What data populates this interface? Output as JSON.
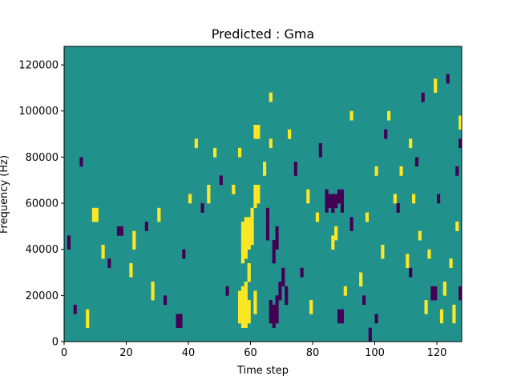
{
  "chart_data": {
    "type": "heatmap",
    "title": "Predicted : Gma",
    "xlabel": "Time step",
    "ylabel": "Frequency (Hz)",
    "xlim": [
      0,
      128
    ],
    "ylim": [
      0,
      128000
    ],
    "x_ticks": [
      0,
      20,
      40,
      60,
      80,
      100,
      120
    ],
    "y_ticks": [
      0,
      20000,
      40000,
      60000,
      80000,
      100000,
      120000
    ],
    "y_tick_labels": [
      "0",
      "20000",
      "40000",
      "60000",
      "80000",
      "100000",
      "120000"
    ],
    "colormap": "viridis",
    "colors": {
      "low": "#440154",
      "mid": "#21918c",
      "high": "#fde725",
      "frame": "#000000"
    },
    "background_value": 0,
    "value_legend": {
      "low": -1,
      "mid": 0,
      "high": 1
    },
    "grid": false,
    "time_bins": 128,
    "freq_bins": 64,
    "freq_bin_hz": 2000,
    "cells": [
      {
        "t": 56,
        "f": [
          4,
          5,
          6,
          7,
          8,
          9,
          10
        ],
        "v": 1
      },
      {
        "t": 57,
        "f": [
          3,
          4,
          5,
          6,
          7,
          8,
          9,
          10,
          11
        ],
        "v": 1
      },
      {
        "t": 58,
        "f": [
          3,
          4,
          5,
          6,
          7,
          8,
          9,
          10,
          11,
          12
        ],
        "v": 1
      },
      {
        "t": 59,
        "f": [
          4,
          5,
          6,
          7,
          8
        ],
        "v": 1
      },
      {
        "t": 57,
        "f": [
          17,
          18,
          19,
          20,
          21,
          22,
          23,
          24,
          25
        ],
        "v": 1
      },
      {
        "t": 58,
        "f": [
          18,
          19,
          20,
          21,
          22,
          23,
          24,
          25,
          26
        ],
        "v": 1
      },
      {
        "t": 59,
        "f": [
          20,
          21,
          22,
          23,
          24,
          25,
          26
        ],
        "v": 1
      },
      {
        "t": 60,
        "f": [
          21,
          22,
          23,
          24,
          25,
          26,
          27,
          28
        ],
        "v": 1
      },
      {
        "t": 61,
        "f": [
          29,
          30,
          31,
          32,
          33
        ],
        "v": 1
      },
      {
        "t": 62,
        "f": [
          30,
          31,
          32,
          33
        ],
        "v": 1
      },
      {
        "t": 59,
        "f": [
          13,
          14,
          15,
          16
        ],
        "v": 1
      },
      {
        "t": 61,
        "f": [
          6,
          7,
          8,
          9,
          10
        ],
        "v": 1
      },
      {
        "t": 66,
        "f": [
          4,
          5,
          6,
          7,
          8
        ],
        "v": -1
      },
      {
        "t": 67,
        "f": [
          3,
          4,
          5,
          6,
          7
        ],
        "v": -1
      },
      {
        "t": 68,
        "f": [
          4,
          5,
          6,
          7,
          8,
          9
        ],
        "v": -1
      },
      {
        "t": 69,
        "f": [
          9,
          10,
          11,
          12
        ],
        "v": -1
      },
      {
        "t": 71,
        "f": [
          8,
          9,
          10,
          11
        ],
        "v": -1
      },
      {
        "t": 65,
        "f": [
          22,
          23,
          24,
          25,
          26,
          27,
          28
        ],
        "v": -1
      },
      {
        "t": 67,
        "f": [
          17,
          18,
          19,
          20,
          21
        ],
        "v": -1
      },
      {
        "t": 68,
        "f": [
          20,
          21,
          22,
          23,
          24
        ],
        "v": -1
      },
      {
        "t": 70,
        "f": [
          12,
          13,
          14,
          15
        ],
        "v": -1
      },
      {
        "t": 84,
        "f": [
          28,
          29,
          30,
          31,
          32
        ],
        "v": -1
      },
      {
        "t": 85,
        "f": [
          29,
          30,
          31
        ],
        "v": -1
      },
      {
        "t": 86,
        "f": [
          28,
          29,
          30,
          31
        ],
        "v": -1
      },
      {
        "t": 88,
        "f": [
          30,
          31,
          32
        ],
        "v": -1
      },
      {
        "t": 89,
        "f": [
          28,
          29,
          30,
          31,
          32
        ],
        "v": -1
      },
      {
        "t": 87,
        "f": [
          29,
          30,
          31
        ],
        "v": -1
      },
      {
        "t": 88,
        "f": [
          4,
          5,
          6
        ],
        "v": -1
      },
      {
        "t": 89,
        "f": [
          4,
          5,
          6
        ],
        "v": -1
      },
      {
        "t": 118,
        "f": [
          9,
          10,
          11
        ],
        "v": -1
      },
      {
        "t": 119,
        "f": [
          9,
          10,
          11
        ],
        "v": -1
      },
      {
        "t": 127,
        "f": [
          9,
          10,
          11
        ],
        "v": -1
      },
      {
        "t": 127,
        "f": [
          42,
          43
        ],
        "v": -1
      },
      {
        "t": 36,
        "f": [
          3,
          4,
          5
        ],
        "v": -1
      },
      {
        "t": 37,
        "f": [
          3,
          4,
          5
        ],
        "v": -1
      },
      {
        "t": 17,
        "f": [
          23,
          24
        ],
        "v": -1
      },
      {
        "t": 18,
        "f": [
          23,
          24
        ],
        "v": -1
      },
      {
        "t": 7,
        "f": [
          3,
          4,
          5,
          6
        ],
        "v": 1
      },
      {
        "t": 9,
        "f": [
          26,
          27,
          28
        ],
        "v": 1
      },
      {
        "t": 10,
        "f": [
          26,
          27,
          28
        ],
        "v": 1
      },
      {
        "t": 12,
        "f": [
          18,
          19,
          20
        ],
        "v": 1
      },
      {
        "t": 21,
        "f": [
          14,
          15,
          16
        ],
        "v": 1
      },
      {
        "t": 22,
        "f": [
          20,
          21,
          22,
          23
        ],
        "v": 1
      },
      {
        "t": 28,
        "f": [
          9,
          10,
          11,
          12
        ],
        "v": 1
      },
      {
        "t": 30,
        "f": [
          26,
          27,
          28
        ],
        "v": 1
      },
      {
        "t": 40,
        "f": [
          30,
          31
        ],
        "v": 1
      },
      {
        "t": 42,
        "f": [
          42,
          43
        ],
        "v": 1
      },
      {
        "t": 46,
        "f": [
          30,
          31,
          32,
          33
        ],
        "v": 1
      },
      {
        "t": 48,
        "f": [
          40,
          41
        ],
        "v": 1
      },
      {
        "t": 54,
        "f": [
          32,
          33
        ],
        "v": 1
      },
      {
        "t": 56,
        "f": [
          40,
          41
        ],
        "v": 1
      },
      {
        "t": 61,
        "f": [
          44,
          45,
          46
        ],
        "v": 1
      },
      {
        "t": 62,
        "f": [
          44,
          45,
          46
        ],
        "v": 1
      },
      {
        "t": 64,
        "f": [
          36,
          37,
          38
        ],
        "v": 1
      },
      {
        "t": 66,
        "f": [
          42,
          43
        ],
        "v": 1
      },
      {
        "t": 66,
        "f": [
          52,
          53
        ],
        "v": 1
      },
      {
        "t": 72,
        "f": [
          44,
          45
        ],
        "v": 1
      },
      {
        "t": 78,
        "f": [
          30,
          31,
          32
        ],
        "v": 1
      },
      {
        "t": 79,
        "f": [
          6,
          7,
          8
        ],
        "v": 1
      },
      {
        "t": 81,
        "f": [
          26,
          27
        ],
        "v": 1
      },
      {
        "t": 86,
        "f": [
          20,
          21,
          22
        ],
        "v": 1
      },
      {
        "t": 87,
        "f": [
          22,
          23,
          24
        ],
        "v": 1
      },
      {
        "t": 90,
        "f": [
          10,
          11
        ],
        "v": 1
      },
      {
        "t": 92,
        "f": [
          48,
          49
        ],
        "v": 1
      },
      {
        "t": 95,
        "f": [
          12,
          13,
          14
        ],
        "v": 1
      },
      {
        "t": 97,
        "f": [
          26,
          27
        ],
        "v": 1
      },
      {
        "t": 100,
        "f": [
          36,
          37
        ],
        "v": 1
      },
      {
        "t": 102,
        "f": [
          18,
          19,
          20
        ],
        "v": 1
      },
      {
        "t": 104,
        "f": [
          48,
          49
        ],
        "v": 1
      },
      {
        "t": 106,
        "f": [
          30,
          31
        ],
        "v": 1
      },
      {
        "t": 108,
        "f": [
          36,
          37
        ],
        "v": 1
      },
      {
        "t": 110,
        "f": [
          16,
          17,
          18
        ],
        "v": 1
      },
      {
        "t": 111,
        "f": [
          42,
          43
        ],
        "v": 1
      },
      {
        "t": 112,
        "f": [
          30,
          31
        ],
        "v": 1
      },
      {
        "t": 114,
        "f": [
          22,
          23
        ],
        "v": 1
      },
      {
        "t": 116,
        "f": [
          6,
          7,
          8
        ],
        "v": 1
      },
      {
        "t": 117,
        "f": [
          18,
          19
        ],
        "v": 1
      },
      {
        "t": 119,
        "f": [
          54,
          55,
          56
        ],
        "v": 1
      },
      {
        "t": 121,
        "f": [
          4,
          5,
          6
        ],
        "v": 1
      },
      {
        "t": 122,
        "f": [
          10,
          11,
          12
        ],
        "v": 1
      },
      {
        "t": 124,
        "f": [
          16,
          17
        ],
        "v": 1
      },
      {
        "t": 125,
        "f": [
          4,
          5,
          6,
          7
        ],
        "v": 1
      },
      {
        "t": 126,
        "f": [
          24,
          25
        ],
        "v": 1
      },
      {
        "t": 127,
        "f": [
          46,
          47,
          48
        ],
        "v": 1
      },
      {
        "t": 1,
        "f": [
          20,
          21,
          22
        ],
        "v": -1
      },
      {
        "t": 3,
        "f": [
          6,
          7
        ],
        "v": -1
      },
      {
        "t": 5,
        "f": [
          38,
          39
        ],
        "v": -1
      },
      {
        "t": 14,
        "f": [
          16,
          17
        ],
        "v": -1
      },
      {
        "t": 26,
        "f": [
          24,
          25
        ],
        "v": -1
      },
      {
        "t": 32,
        "f": [
          8,
          9
        ],
        "v": -1
      },
      {
        "t": 38,
        "f": [
          18,
          19
        ],
        "v": -1
      },
      {
        "t": 44,
        "f": [
          28,
          29
        ],
        "v": -1
      },
      {
        "t": 50,
        "f": [
          34,
          35
        ],
        "v": -1
      },
      {
        "t": 52,
        "f": [
          10,
          11
        ],
        "v": -1
      },
      {
        "t": 74,
        "f": [
          36,
          37,
          38
        ],
        "v": -1
      },
      {
        "t": 76,
        "f": [
          14,
          15
        ],
        "v": -1
      },
      {
        "t": 82,
        "f": [
          40,
          41,
          42
        ],
        "v": -1
      },
      {
        "t": 92,
        "f": [
          24,
          25,
          26
        ],
        "v": -1
      },
      {
        "t": 96,
        "f": [
          8,
          9
        ],
        "v": -1
      },
      {
        "t": 98,
        "f": [
          0,
          1,
          2
        ],
        "v": -1
      },
      {
        "t": 100,
        "f": [
          4,
          5
        ],
        "v": -1
      },
      {
        "t": 103,
        "f": [
          44,
          45
        ],
        "v": -1
      },
      {
        "t": 107,
        "f": [
          28,
          29
        ],
        "v": -1
      },
      {
        "t": 111,
        "f": [
          14,
          15
        ],
        "v": -1
      },
      {
        "t": 113,
        "f": [
          38,
          39
        ],
        "v": -1
      },
      {
        "t": 115,
        "f": [
          52,
          53
        ],
        "v": -1
      },
      {
        "t": 120,
        "f": [
          30,
          31
        ],
        "v": -1
      },
      {
        "t": 123,
        "f": [
          56,
          57
        ],
        "v": -1
      },
      {
        "t": 126,
        "f": [
          36,
          37
        ],
        "v": -1
      }
    ]
  }
}
